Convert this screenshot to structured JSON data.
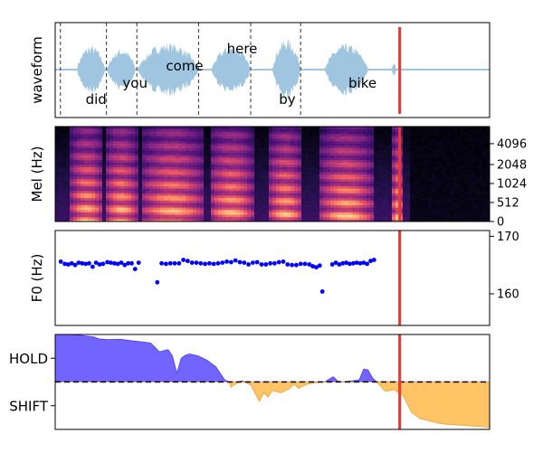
{
  "chart_data": [
    {
      "type": "line",
      "ylabel": "waveform",
      "x_range": [
        0,
        1
      ],
      "words": [
        {
          "text": "did",
          "x": 0.07,
          "row": "low"
        },
        {
          "text": "you",
          "x": 0.155,
          "row": "mid"
        },
        {
          "text": "come",
          "x": 0.255,
          "row": "midhigh"
        },
        {
          "text": "here",
          "x": 0.395,
          "row": "high"
        },
        {
          "text": "by",
          "x": 0.515,
          "row": "low"
        },
        {
          "text": "bike",
          "x": 0.675,
          "row": "mid"
        }
      ],
      "boundaries": [
        0.012,
        0.118,
        0.188,
        0.33,
        0.45,
        0.565
      ],
      "marker_x": 0.793,
      "marker_color": "#e53935",
      "color": "#9fc5e0"
    },
    {
      "type": "heatmap",
      "ylabel": "Mel (Hz)",
      "yticks": [
        "0",
        "512",
        "1024",
        "2048",
        "4096"
      ],
      "marker_x": 0.793,
      "colormap": "magma"
    },
    {
      "type": "scatter",
      "ylabel": "F0 (Hz)",
      "yticks": [
        160,
        170
      ],
      "ylim": [
        154.5,
        171
      ],
      "color": "#0000ff",
      "points": [
        [
          0.013,
          165.6
        ],
        [
          0.022,
          165.2
        ],
        [
          0.03,
          165.1
        ],
        [
          0.038,
          165.3
        ],
        [
          0.046,
          165.0
        ],
        [
          0.054,
          165.4
        ],
        [
          0.062,
          165.3
        ],
        [
          0.07,
          165.2
        ],
        [
          0.078,
          165.3
        ],
        [
          0.086,
          164.7
        ],
        [
          0.094,
          165.4
        ],
        [
          0.102,
          165.1
        ],
        [
          0.11,
          165.2
        ],
        [
          0.12,
          165.5
        ],
        [
          0.128,
          165.4
        ],
        [
          0.136,
          165.3
        ],
        [
          0.144,
          165.2
        ],
        [
          0.152,
          165.4
        ],
        [
          0.16,
          165.0
        ],
        [
          0.168,
          165.3
        ],
        [
          0.176,
          165.3
        ],
        [
          0.184,
          164.3
        ],
        [
          0.192,
          165.4
        ],
        [
          0.235,
          162.0
        ],
        [
          0.245,
          165.3
        ],
        [
          0.255,
          165.2
        ],
        [
          0.265,
          165.3
        ],
        [
          0.275,
          165.3
        ],
        [
          0.285,
          165.3
        ],
        [
          0.295,
          165.9
        ],
        [
          0.305,
          165.7
        ],
        [
          0.315,
          165.4
        ],
        [
          0.325,
          165.4
        ],
        [
          0.335,
          165.3
        ],
        [
          0.345,
          165.2
        ],
        [
          0.355,
          165.3
        ],
        [
          0.365,
          165.2
        ],
        [
          0.375,
          165.3
        ],
        [
          0.385,
          165.4
        ],
        [
          0.395,
          165.6
        ],
        [
          0.405,
          165.5
        ],
        [
          0.415,
          165.8
        ],
        [
          0.425,
          165.5
        ],
        [
          0.435,
          165.4
        ],
        [
          0.445,
          165.1
        ],
        [
          0.455,
          165.4
        ],
        [
          0.465,
          165.5
        ],
        [
          0.475,
          165.1
        ],
        [
          0.485,
          165.1
        ],
        [
          0.495,
          165.3
        ],
        [
          0.505,
          165.3
        ],
        [
          0.515,
          165.5
        ],
        [
          0.525,
          165.6
        ],
        [
          0.535,
          165.1
        ],
        [
          0.545,
          165.0
        ],
        [
          0.555,
          165.0
        ],
        [
          0.565,
          165.2
        ],
        [
          0.575,
          165.2
        ],
        [
          0.585,
          165.1
        ],
        [
          0.593,
          164.8
        ],
        [
          0.601,
          164.6
        ],
        [
          0.609,
          164.9
        ],
        [
          0.615,
          160.4
        ],
        [
          0.638,
          165.1
        ],
        [
          0.646,
          165.4
        ],
        [
          0.654,
          165.1
        ],
        [
          0.662,
          165.3
        ],
        [
          0.67,
          165.4
        ],
        [
          0.678,
          165.2
        ],
        [
          0.686,
          165.3
        ],
        [
          0.694,
          165.4
        ],
        [
          0.702,
          165.3
        ],
        [
          0.71,
          165.4
        ],
        [
          0.718,
          165.2
        ],
        [
          0.726,
          165.7
        ],
        [
          0.734,
          165.9
        ]
      ],
      "marker_x": 0.793
    },
    {
      "type": "area",
      "yticks": [
        "HOLD",
        "SHIFT"
      ],
      "ylim": [
        -1.1,
        1.1
      ],
      "baseline_style": "dashed",
      "hold_color": "#6a5cff",
      "shift_color": "#ffc15e",
      "x": [
        0.0,
        0.03,
        0.06,
        0.09,
        0.1,
        0.12,
        0.15,
        0.18,
        0.2,
        0.22,
        0.24,
        0.26,
        0.27,
        0.28,
        0.29,
        0.3,
        0.31,
        0.33,
        0.35,
        0.37,
        0.38,
        0.39,
        0.4,
        0.405,
        0.41,
        0.42,
        0.43,
        0.44,
        0.45,
        0.47,
        0.48,
        0.49,
        0.5,
        0.52,
        0.54,
        0.55,
        0.56,
        0.58,
        0.6,
        0.62,
        0.64,
        0.65,
        0.66,
        0.68,
        0.7,
        0.71,
        0.72,
        0.73,
        0.74,
        0.76,
        0.78,
        0.79,
        0.8,
        0.82,
        0.84,
        0.86,
        0.88,
        0.9,
        0.93,
        0.96,
        1.0
      ],
      "y": [
        1.1,
        1.1,
        1.08,
        1.04,
        1.0,
        0.98,
        0.99,
        0.95,
        0.93,
        0.9,
        0.7,
        0.75,
        0.6,
        0.2,
        0.55,
        0.62,
        0.65,
        0.6,
        0.5,
        0.35,
        0.2,
        0.05,
        0.0,
        -0.12,
        -0.08,
        -0.02,
        0.02,
        -0.02,
        -0.07,
        -0.45,
        -0.25,
        -0.35,
        -0.2,
        -0.25,
        -0.15,
        -0.05,
        -0.15,
        -0.05,
        -0.02,
        0.0,
        0.12,
        0.02,
        0.0,
        0.02,
        0.05,
        0.3,
        0.28,
        0.1,
        0.0,
        -0.22,
        -0.18,
        -0.25,
        -0.3,
        -0.7,
        -0.85,
        -0.9,
        -0.95,
        -0.98,
        -1.0,
        -1.02,
        -1.05
      ],
      "marker_x": 0.793
    }
  ]
}
